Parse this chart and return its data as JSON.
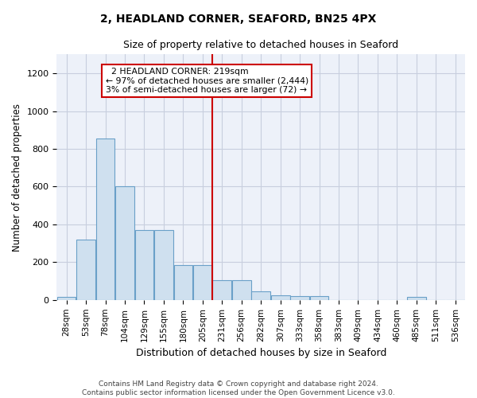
{
  "title": "2, HEADLAND CORNER, SEAFORD, BN25 4PX",
  "subtitle": "Size of property relative to detached houses in Seaford",
  "xlabel": "Distribution of detached houses by size in Seaford",
  "ylabel": "Number of detached properties",
  "bar_color": "#cfe0ef",
  "bar_edge_color": "#6aa0c8",
  "bins": [
    "28sqm",
    "53sqm",
    "78sqm",
    "104sqm",
    "129sqm",
    "155sqm",
    "180sqm",
    "205sqm",
    "231sqm",
    "256sqm",
    "282sqm",
    "307sqm",
    "333sqm",
    "358sqm",
    "383sqm",
    "409sqm",
    "434sqm",
    "460sqm",
    "485sqm",
    "511sqm",
    "536sqm"
  ],
  "values": [
    15,
    320,
    855,
    600,
    370,
    370,
    185,
    185,
    105,
    105,
    45,
    25,
    20,
    20,
    0,
    0,
    0,
    0,
    15,
    0,
    0
  ],
  "vline_pos": 8.5,
  "vline_color": "#cc0000",
  "annotation_text": "  2 HEADLAND CORNER: 219sqm\n← 97% of detached houses are smaller (2,444)\n3% of semi-detached houses are larger (72) →",
  "annotation_box_color": "#ffffff",
  "annotation_box_edge": "#cc0000",
  "ylim": [
    0,
    1300
  ],
  "yticks": [
    0,
    200,
    400,
    600,
    800,
    1000,
    1200
  ],
  "grid_color": "#c8cede",
  "footer": "Contains HM Land Registry data © Crown copyright and database right 2024.\nContains public sector information licensed under the Open Government Licence v3.0.",
  "background_color": "#edf1f9"
}
